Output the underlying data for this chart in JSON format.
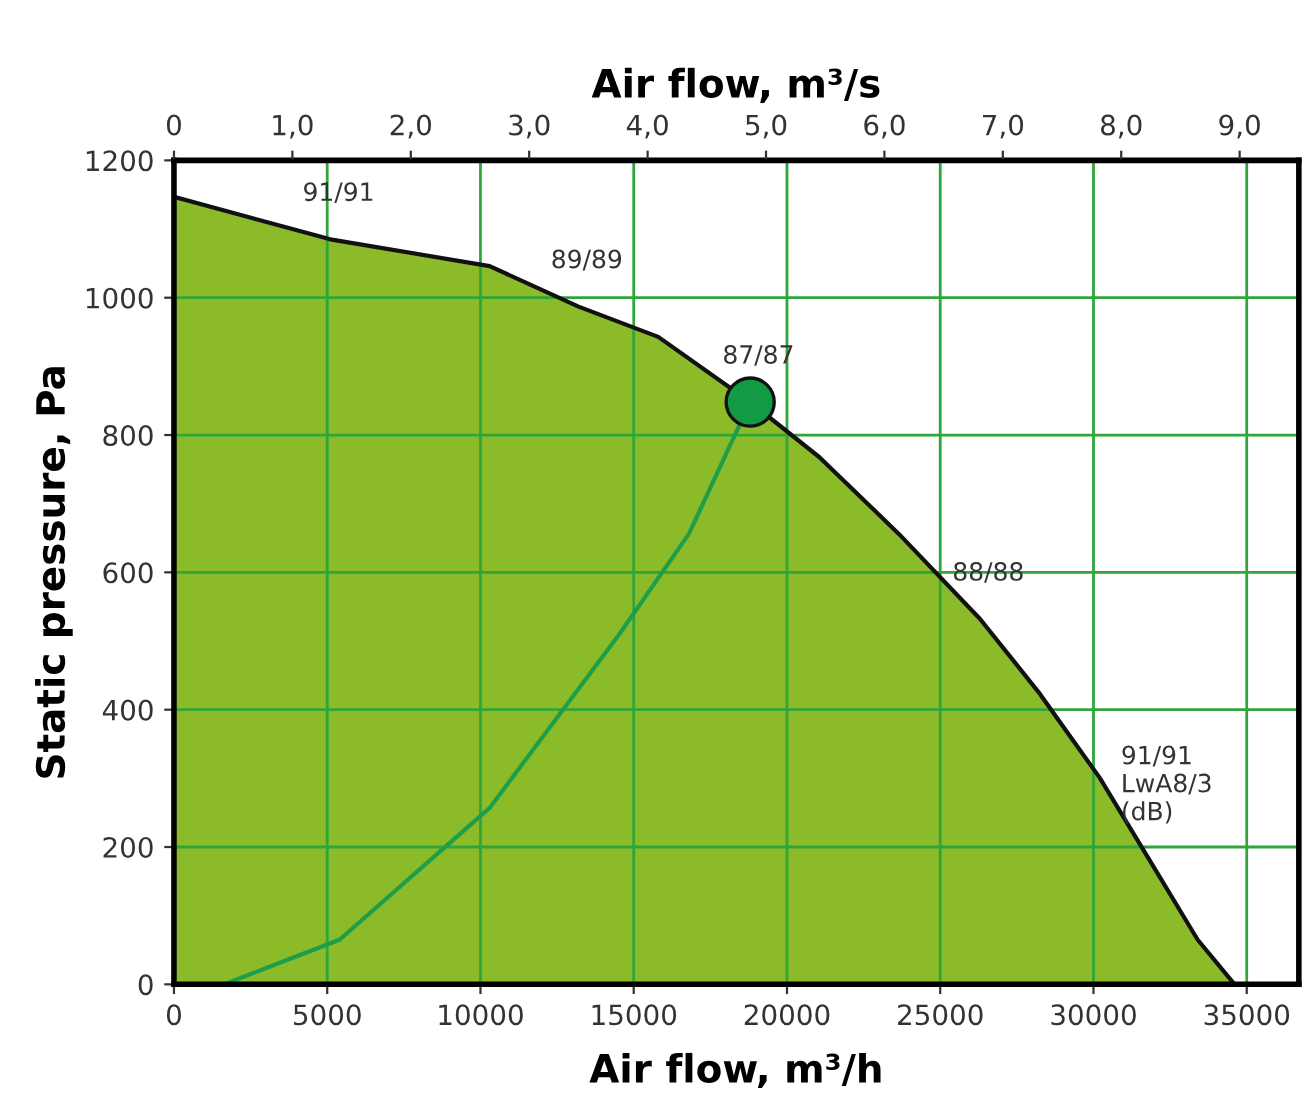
{
  "chart_data": {
    "type": "area",
    "xlabel": "Air flow, m³/h",
    "x2label": "Air flow, m³/s",
    "ylabel": "Static pressure, Pa",
    "xlim": [
      0,
      36700
    ],
    "xticks": [
      0,
      5000,
      10000,
      15000,
      20000,
      25000,
      30000,
      35000
    ],
    "x2lim": [
      0,
      9.5
    ],
    "x2ticks": [
      {
        "value": 0,
        "label": "0"
      },
      {
        "value": 1,
        "label": "1,0"
      },
      {
        "value": 2,
        "label": "2,0"
      },
      {
        "value": 3,
        "label": "3,0"
      },
      {
        "value": 4,
        "label": "4,0"
      },
      {
        "value": 5,
        "label": "5,0"
      },
      {
        "value": 6,
        "label": "6,0"
      },
      {
        "value": 7,
        "label": "7,0"
      },
      {
        "value": 8,
        "label": "8,0"
      },
      {
        "value": 9,
        "label": "9,0"
      }
    ],
    "ylim": [
      0,
      1200
    ],
    "yticks": [
      0,
      200,
      400,
      600,
      800,
      1000,
      1200
    ],
    "grid": true,
    "legend": false,
    "series": [
      {
        "color": "#8cbb2a",
        "x": [
          0,
          5100,
          10300,
          13200,
          15800,
          18800,
          21050,
          23650,
          26300,
          28200,
          30200,
          31800,
          33400,
          34600
        ],
        "values": [
          1147,
          1085,
          1046,
          987,
          943,
          848,
          768,
          656,
          532,
          426,
          301,
          183,
          65,
          0
        ]
      },
      {
        "type": "line",
        "color": "#1f9e4a",
        "x": [
          1630,
          5400,
          10300,
          14500,
          16800,
          18800
        ],
        "values": [
          0,
          65,
          257,
          508,
          656,
          848
        ]
      },
      {
        "type": "scatter",
        "color": "#139a45",
        "marker": "circle",
        "x": [
          18800
        ],
        "values": [
          848
        ]
      }
    ],
    "annotations": [
      {
        "text": "91/91",
        "x": 5100,
        "y": 1085
      },
      {
        "text": "89/89",
        "x": 13200,
        "y": 987
      },
      {
        "text": "87/87",
        "x": 18800,
        "y": 848
      },
      {
        "text": "88/88",
        "x": 26300,
        "y": 532
      },
      {
        "text": "91/91\nLwA8/3\n(dB)",
        "x": 31800,
        "y": 183
      }
    ]
  }
}
